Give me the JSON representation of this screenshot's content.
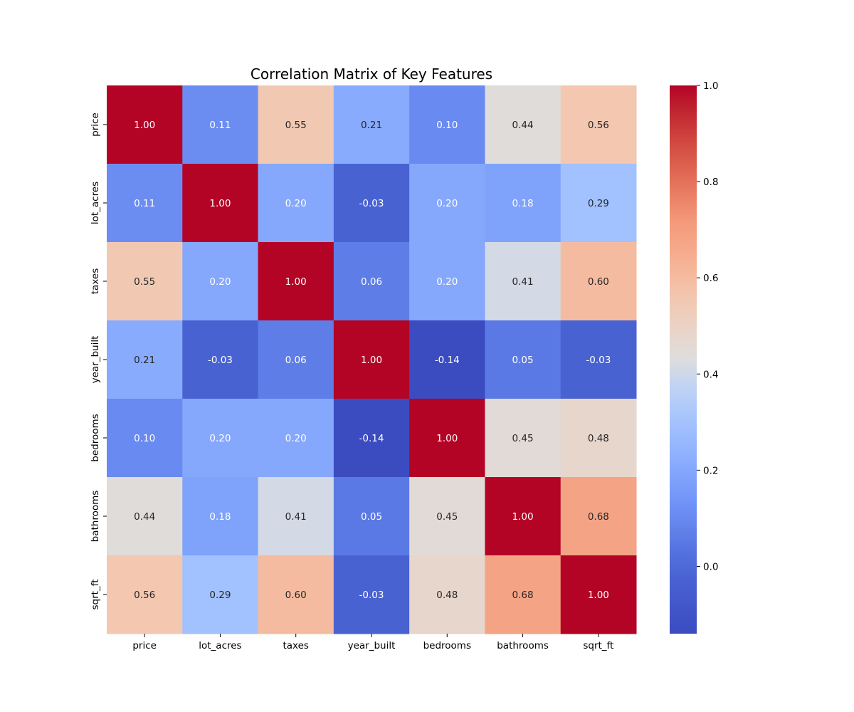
{
  "chart_data": {
    "type": "heatmap",
    "title": "Correlation Matrix of Key Features",
    "xlabel": "",
    "ylabel": "",
    "x_labels": [
      "price",
      "lot_acres",
      "taxes",
      "year_built",
      "bedrooms",
      "bathrooms",
      "sqrt_ft"
    ],
    "y_labels": [
      "price",
      "lot_acres",
      "taxes",
      "year_built",
      "bedrooms",
      "bathrooms",
      "sqrt_ft"
    ],
    "values": [
      [
        1.0,
        0.11,
        0.55,
        0.21,
        0.1,
        0.44,
        0.56
      ],
      [
        0.11,
        1.0,
        0.2,
        -0.03,
        0.2,
        0.18,
        0.29
      ],
      [
        0.55,
        0.2,
        1.0,
        0.06,
        0.2,
        0.41,
        0.6
      ],
      [
        0.21,
        -0.03,
        0.06,
        1.0,
        -0.14,
        0.05,
        -0.03
      ],
      [
        0.1,
        0.2,
        0.2,
        -0.14,
        1.0,
        0.45,
        0.48
      ],
      [
        0.44,
        0.18,
        0.41,
        0.05,
        0.45,
        1.0,
        0.68
      ],
      [
        0.56,
        0.29,
        0.6,
        -0.03,
        0.48,
        0.68,
        1.0
      ]
    ],
    "annotation_format": "0.00",
    "colormap": "coolwarm",
    "vmin": -0.14,
    "vmax": 1.0,
    "colorbar": {
      "placement": "right",
      "ticks": [
        0.0,
        0.2,
        0.4,
        0.6,
        0.8,
        1.0
      ],
      "tick_labels": [
        "0.0",
        "0.2",
        "0.4",
        "0.6",
        "0.8",
        "1.0"
      ]
    },
    "grid": false
  }
}
